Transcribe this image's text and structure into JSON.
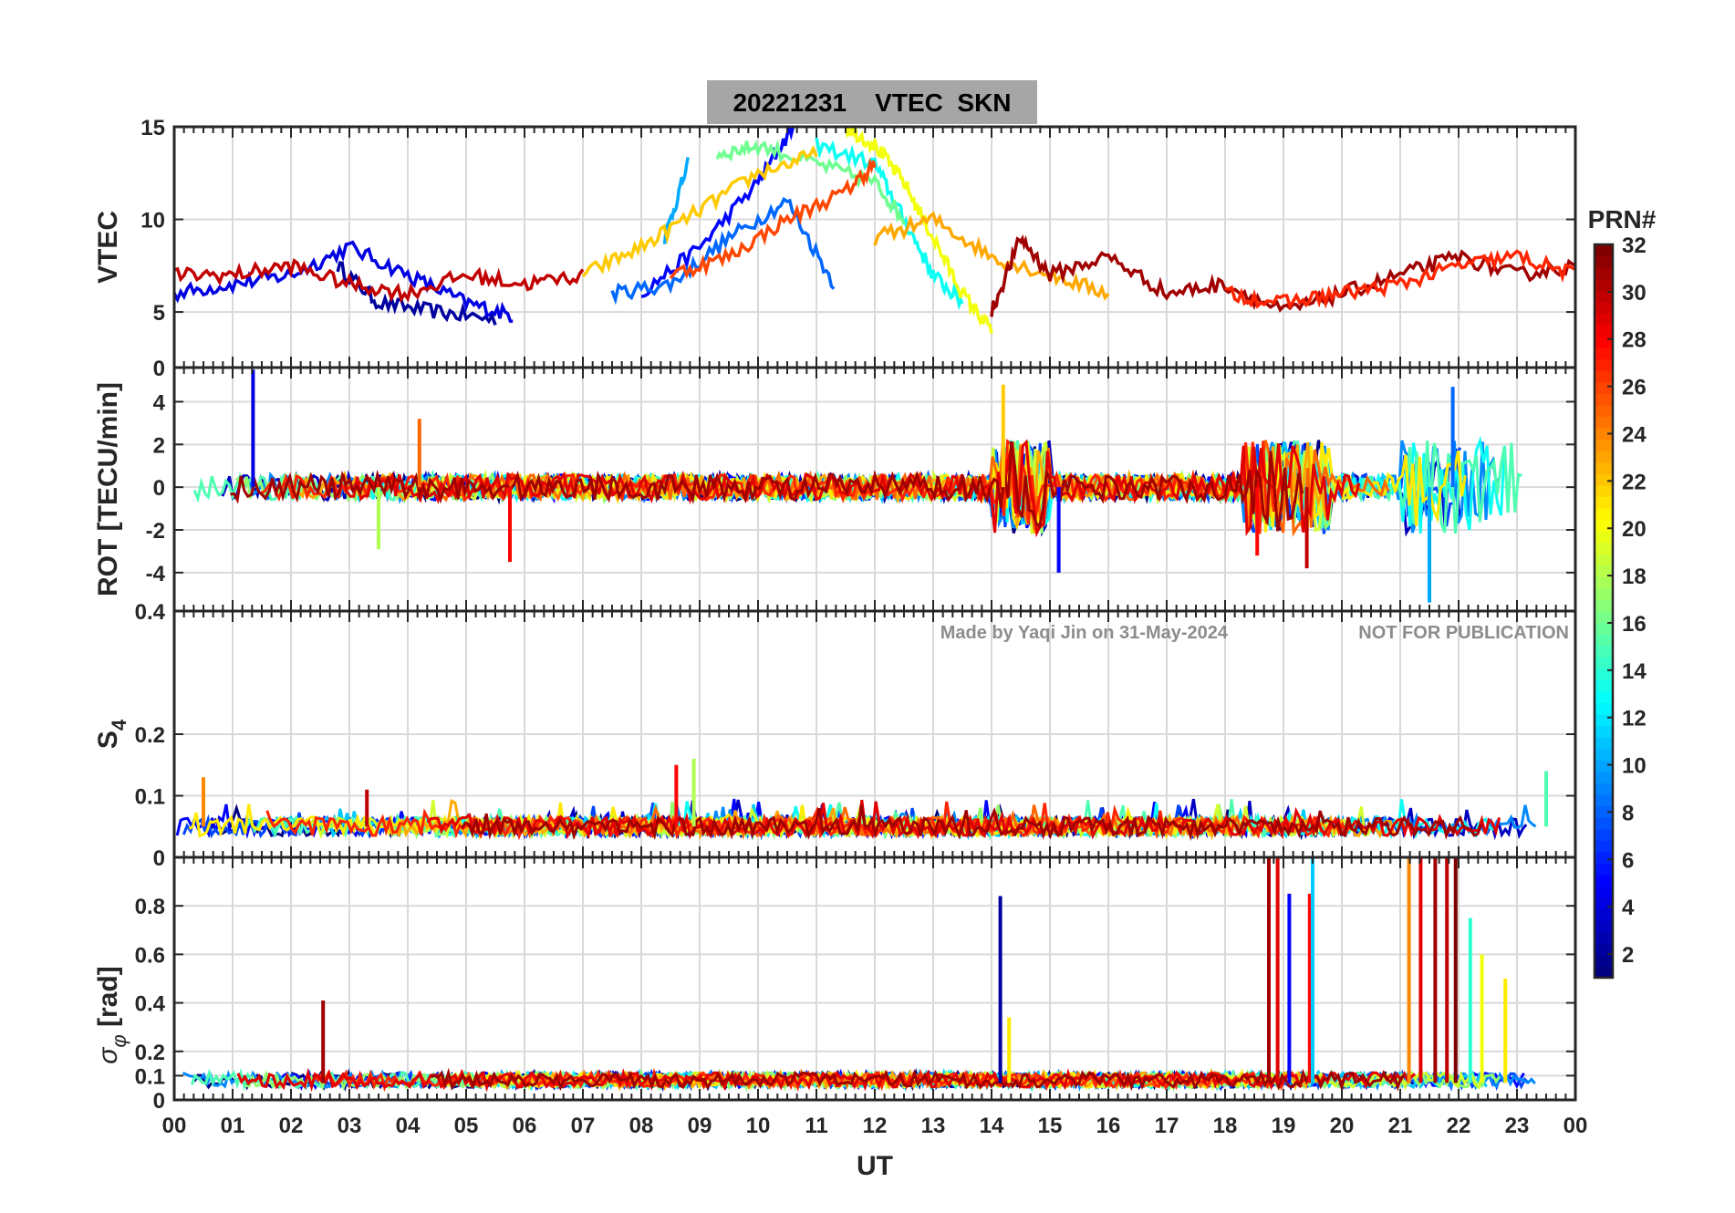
{
  "chart_data": [
    {
      "type": "line",
      "panel": "vtec",
      "title": "20221231    VTEC  SKN",
      "ylabel": "VTEC",
      "xlim": [
        0,
        24
      ],
      "ylim": [
        2,
        15
      ],
      "yticks": [
        5,
        10,
        15
      ],
      "ytick_labels": [
        "5",
        "10",
        "15"
      ],
      "grid": true,
      "series": [
        {
          "prn": 2,
          "x": [
            2.8,
            3.5,
            4.5,
            5.5
          ],
          "y": [
            7.5,
            5.5,
            5.0,
            4.6
          ]
        },
        {
          "prn": 4,
          "x": [
            0.0,
            1.0,
            2.0,
            3.0,
            4.0,
            5.0,
            5.8
          ],
          "y": [
            6.0,
            6.5,
            7.0,
            8.5,
            7.0,
            5.5,
            4.8
          ]
        },
        {
          "prn": 5,
          "x": [
            8.0,
            9.0,
            10.0,
            10.6
          ],
          "y": [
            6.0,
            8.5,
            12.0,
            15.0
          ]
        },
        {
          "prn": 8,
          "x": [
            7.5,
            8.5,
            9.5,
            10.5,
            11.3
          ],
          "y": [
            6.0,
            6.5,
            9.0,
            11.0,
            6.5
          ]
        },
        {
          "prn": 10,
          "x": [
            8.4,
            8.8
          ],
          "y": [
            9.0,
            13.0
          ]
        },
        {
          "prn": 13,
          "x": [
            11.0,
            12.0,
            12.5,
            13.0,
            13.5
          ],
          "y": [
            14.0,
            13.0,
            10.0,
            7.0,
            5.5
          ]
        },
        {
          "prn": 16,
          "x": [
            9.3,
            10.0,
            11.0,
            12.0,
            12.5
          ],
          "y": [
            13.5,
            14.0,
            13.0,
            12.0,
            10.0
          ]
        },
        {
          "prn": 20,
          "x": [
            11.5,
            12.0,
            12.5,
            13.0,
            13.5,
            14.0
          ],
          "y": [
            15.0,
            14.0,
            12.0,
            9.0,
            6.0,
            4.0
          ]
        },
        {
          "prn": 22,
          "x": [
            7.0,
            8.0,
            9.0,
            10.0,
            11.0
          ],
          "y": [
            7.0,
            8.5,
            10.5,
            12.5,
            13.5
          ]
        },
        {
          "prn": 23,
          "x": [
            12.0,
            13.0,
            14.0,
            15.0,
            16.0
          ],
          "y": [
            9.0,
            10.0,
            8.0,
            7.0,
            6.0
          ]
        },
        {
          "prn": 26,
          "x": [
            8.5,
            9.5,
            10.5,
            11.5,
            12.0
          ],
          "y": [
            7.0,
            8.0,
            10.0,
            11.5,
            13.0
          ]
        },
        {
          "prn": 30,
          "x": [
            0.0,
            1.0,
            2.0,
            3.0,
            4.0,
            5.0,
            6.0,
            7.0
          ],
          "y": [
            7.0,
            7.0,
            7.5,
            6.5,
            6.0,
            7.0,
            6.5,
            7.0
          ]
        },
        {
          "prn": 31,
          "x": [
            14.0,
            14.5,
            15.0,
            16.0,
            17.0,
            18.0,
            19.0,
            20.0,
            21.0,
            22.0,
            23.0,
            24.0
          ],
          "y": [
            5.0,
            9.0,
            7.0,
            8.0,
            6.0,
            6.5,
            5.0,
            6.0,
            7.0,
            8.0,
            7.0,
            7.5
          ]
        },
        {
          "prn": 27,
          "x": [
            18.0,
            19.0,
            20.0,
            21.0,
            22.0,
            23.0,
            24.0
          ],
          "y": [
            6.0,
            5.5,
            6.0,
            6.5,
            7.5,
            8.0,
            7.0
          ]
        }
      ]
    },
    {
      "type": "line",
      "panel": "rot",
      "ylabel": "ROT [TECU/min]",
      "xlim": [
        0,
        24
      ],
      "ylim": [
        -5.8,
        5.6
      ],
      "yticks": [
        -4,
        -2,
        0,
        2,
        4
      ],
      "ytick_labels": [
        "-4",
        "-2",
        "0",
        "2",
        "4"
      ],
      "top_tick_label": "0",
      "grid": true,
      "baseline": 0,
      "spikes": [
        {
          "x": 1.35,
          "y": 5.5,
          "prn": 4
        },
        {
          "x": 5.75,
          "y": -3.5,
          "prn": 28
        },
        {
          "x": 14.2,
          "y": 4.8,
          "prn": 22
        },
        {
          "x": 15.15,
          "y": -4.0,
          "prn": 5
        },
        {
          "x": 18.55,
          "y": -3.2,
          "prn": 28
        },
        {
          "x": 19.4,
          "y": -3.8,
          "prn": 30
        },
        {
          "x": 21.5,
          "y": -5.4,
          "prn": 10
        },
        {
          "x": 21.9,
          "y": 4.7,
          "prn": 8
        },
        {
          "x": 3.5,
          "y": -2.9,
          "prn": 18
        },
        {
          "x": 4.2,
          "y": 3.2,
          "prn": 25
        }
      ]
    },
    {
      "type": "line",
      "panel": "s4",
      "ylabel": "S4",
      "xlim": [
        0,
        24
      ],
      "ylim": [
        0,
        0.4
      ],
      "yticks": [
        0.1,
        0.2,
        0.4
      ],
      "ytick_labels": [
        "0.1",
        "0.2",
        "0.4"
      ],
      "top_tick_label": "0.4",
      "grid": true,
      "baseline": 0.05,
      "spikes": [
        {
          "x": 0.5,
          "y": 0.13,
          "prn": 24
        },
        {
          "x": 3.3,
          "y": 0.11,
          "prn": 30
        },
        {
          "x": 8.6,
          "y": 0.15,
          "prn": 28
        },
        {
          "x": 8.9,
          "y": 0.16,
          "prn": 18
        },
        {
          "x": 23.5,
          "y": 0.14,
          "prn": 15
        }
      ]
    },
    {
      "type": "line",
      "panel": "sigma_phi",
      "ylabel": "σφ [rad]",
      "xlim": [
        0,
        24
      ],
      "ylim": [
        0,
        1.0
      ],
      "yticks": [
        0,
        0.1,
        0.2,
        0.4,
        0.6,
        0.8
      ],
      "ytick_labels": [
        "0",
        "0.1",
        "0.2",
        "0.4",
        "0.6",
        "0.8"
      ],
      "top_tick_label": "0",
      "xticks": [
        0,
        1,
        2,
        3,
        4,
        5,
        6,
        7,
        8,
        9,
        10,
        11,
        12,
        13,
        14,
        15,
        16,
        17,
        18,
        19,
        20,
        21,
        22,
        23,
        24
      ],
      "xtick_labels": [
        "00",
        "01",
        "02",
        "03",
        "04",
        "05",
        "06",
        "07",
        "08",
        "09",
        "10",
        "11",
        "12",
        "13",
        "14",
        "15",
        "16",
        "17",
        "18",
        "19",
        "20",
        "21",
        "22",
        "23",
        "00"
      ],
      "xlabel": "UT",
      "grid": true,
      "baseline": 0.07,
      "spikes": [
        {
          "x": 2.55,
          "y": 0.41,
          "prn": 31
        },
        {
          "x": 14.15,
          "y": 0.84,
          "prn": 2
        },
        {
          "x": 14.3,
          "y": 0.34,
          "prn": 21
        },
        {
          "x": 18.75,
          "y": 1.0,
          "prn": 31
        },
        {
          "x": 18.9,
          "y": 1.0,
          "prn": 29
        },
        {
          "x": 19.1,
          "y": 0.85,
          "prn": 5
        },
        {
          "x": 19.45,
          "y": 0.85,
          "prn": 28
        },
        {
          "x": 19.5,
          "y": 1.0,
          "prn": 11
        },
        {
          "x": 21.15,
          "y": 1.0,
          "prn": 24
        },
        {
          "x": 21.35,
          "y": 1.0,
          "prn": 29
        },
        {
          "x": 21.6,
          "y": 1.0,
          "prn": 31
        },
        {
          "x": 21.8,
          "y": 1.0,
          "prn": 30
        },
        {
          "x": 21.95,
          "y": 1.0,
          "prn": 32
        },
        {
          "x": 22.2,
          "y": 0.75,
          "prn": 14
        },
        {
          "x": 22.4,
          "y": 0.6,
          "prn": 20
        },
        {
          "x": 22.8,
          "y": 0.5,
          "prn": 21
        }
      ]
    }
  ],
  "colorbar": {
    "label": "PRN#",
    "range": [
      1,
      32
    ],
    "ticks": [
      2,
      4,
      6,
      8,
      10,
      12,
      14,
      16,
      18,
      20,
      22,
      24,
      26,
      28,
      30,
      32
    ],
    "tick_labels": [
      "2",
      "4",
      "6",
      "8",
      "10",
      "12",
      "14",
      "16",
      "18",
      "20",
      "22",
      "24",
      "26",
      "28",
      "30",
      "32"
    ],
    "colormap": "jet"
  },
  "title": "20221231    VTEC  SKN",
  "watermark": {
    "left": "Made by Yaqi Jin on 31-May-2024",
    "right": "NOT FOR PUBLICATION"
  },
  "colors": {
    "title_box": "#a6a6a6",
    "grid": "#d9d9d9",
    "axis": "#262626",
    "watermark": "#8c8c8c"
  }
}
